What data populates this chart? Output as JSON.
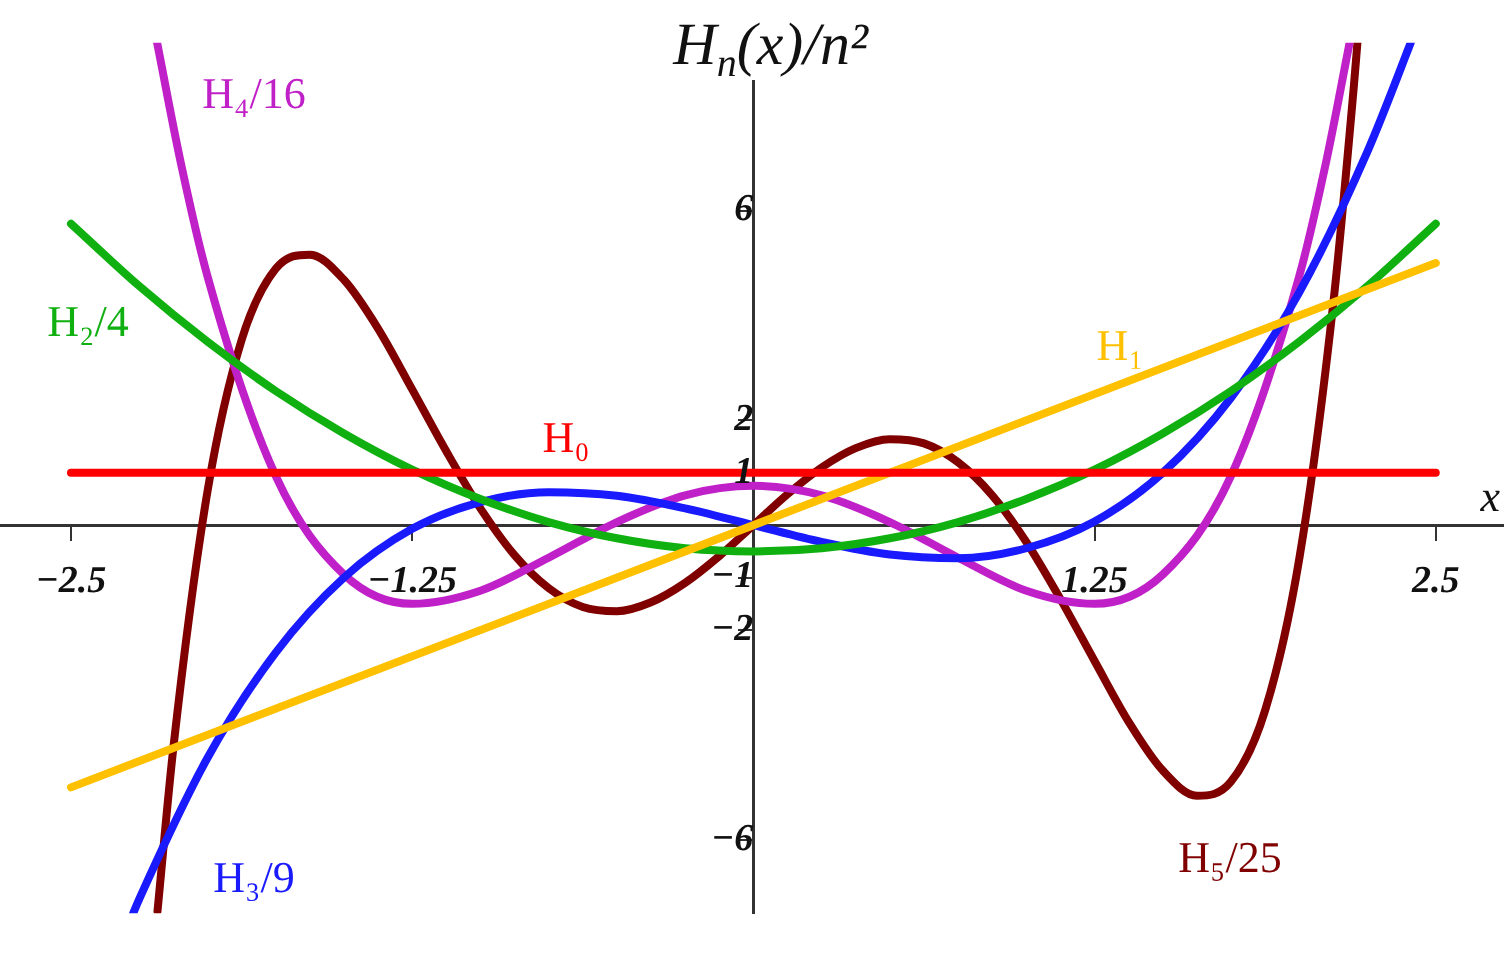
{
  "chart_data": {
    "type": "line",
    "ylabel": "H$_{n}$(x)/n²",
    "xlabel": "x",
    "xlim": [
      -2.76,
      2.75
    ],
    "ylim": [
      -7.4,
      9.2
    ],
    "xticks": [
      -2.5,
      -1.25,
      1.25,
      2.5
    ],
    "yticks": [
      -6,
      -2,
      -1,
      1,
      2,
      6
    ],
    "grid": false,
    "legend": false,
    "marker": "none",
    "line_style": "solid",
    "series": [
      {
        "name": "H₀",
        "color": "#ff0000",
        "x": [
          -2.5,
          2.5
        ],
        "values": [
          1,
          1
        ]
      },
      {
        "name": "H₁",
        "color": "#ffc000",
        "x": [
          -2.5,
          2.5
        ],
        "values": [
          -5,
          5
        ]
      },
      {
        "name": "H₂/4",
        "color": "#10b010",
        "x": [
          -2.5,
          -2.25,
          -2,
          -1.75,
          -1.5,
          -1.25,
          -1,
          -0.75,
          -0.5,
          -0.25,
          0,
          0.25,
          0.5,
          0.75,
          1,
          1.25,
          1.5,
          1.75,
          2,
          2.25,
          2.5
        ],
        "values": [
          5.75,
          4.56,
          3.5,
          2.56,
          1.75,
          1.06,
          0.5,
          0.06,
          -0.25,
          -0.44,
          -0.5,
          -0.44,
          -0.25,
          0.06,
          0.5,
          1.06,
          1.75,
          2.56,
          3.5,
          4.56,
          5.75
        ]
      },
      {
        "name": "H₃/9",
        "color": "#1a1aff",
        "x": [
          -2.272,
          -2.25,
          -2,
          -1.75,
          -1.5,
          -1.25,
          -1,
          -0.75,
          -0.5,
          -0.25,
          0,
          0.25,
          0.5,
          0.75,
          1,
          1.25,
          1.5,
          1.75,
          2,
          2.25,
          2.4,
          2.408
        ],
        "values": [
          -7.4,
          -7.13,
          -4.44,
          -2.43,
          -1,
          -0.07,
          0.44,
          0.63,
          0.56,
          0.32,
          0,
          -0.32,
          -0.56,
          -0.63,
          -0.44,
          0.07,
          1,
          2.43,
          4.44,
          7.13,
          9.09,
          9.2
        ]
      },
      {
        "name": "H₄/16",
        "color": "#c020c8",
        "x": [
          -2.184,
          -2.1,
          -2,
          -1.75,
          -1.5,
          -1.25,
          -1,
          -0.75,
          -0.5,
          -0.25,
          0,
          0.25,
          0.5,
          0.75,
          1,
          1.25,
          1.5,
          1.75,
          2,
          2.1,
          2.184
        ],
        "values": [
          9.19,
          6.97,
          4.75,
          0.94,
          -0.94,
          -1.5,
          -1.25,
          -0.62,
          0.06,
          0.57,
          0.75,
          0.57,
          0.06,
          -0.62,
          -1.25,
          -1.5,
          -0.94,
          0.94,
          4.75,
          6.97,
          9.19
        ]
      },
      {
        "name": "H₅/25",
        "color": "#800000",
        "x": [
          -2.183,
          -2.125,
          -2,
          -1.875,
          -1.75,
          -1.625,
          -1.5,
          -1.375,
          -1.25,
          -1.125,
          -1,
          -0.875,
          -0.75,
          -0.625,
          -0.5,
          -0.375,
          -0.25,
          -0.125,
          0,
          0.125,
          0.25,
          0.375,
          0.5,
          0.625,
          0.75,
          0.875,
          1,
          1.125,
          1.25,
          1.375,
          1.5,
          1.625,
          1.75,
          1.875,
          2,
          2.125,
          2.2,
          2.213
        ],
        "values": [
          -7.36,
          -4.25,
          0.64,
          3.53,
          4.89,
          5.16,
          4.68,
          3.75,
          2.59,
          1.41,
          0.32,
          -0.57,
          -1.2,
          -1.56,
          -1.64,
          -1.47,
          -1.1,
          -0.59,
          0,
          0.59,
          1.1,
          1.47,
          1.64,
          1.56,
          1.2,
          0.57,
          -0.32,
          -1.41,
          -2.59,
          -3.75,
          -4.68,
          -5.16,
          -4.89,
          -3.53,
          -0.64,
          4.25,
          8.38,
          9.2
        ]
      }
    ]
  }
}
